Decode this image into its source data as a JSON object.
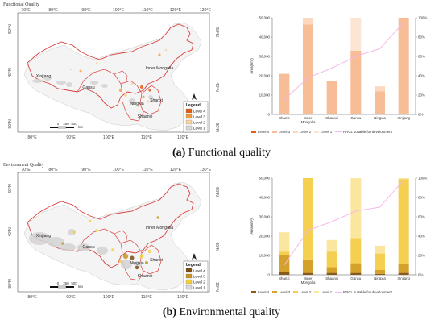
{
  "panels": [
    {
      "id": "a",
      "header": "Functional Quality",
      "caption_letter": "(a)",
      "caption_text": " Functional quality",
      "map": {
        "lon_labels": [
          "70°E",
          "80°E",
          "90°E",
          "100°E",
          "110°E",
          "120°E",
          "130°E"
        ],
        "lat_labels_right": [
          "50°N",
          "40°N",
          "30°N"
        ],
        "lat_labels_left": [
          "50°N",
          "40°N",
          "30°N"
        ],
        "bottom_lon_labels": [
          "80°E",
          "90°E",
          "100°E",
          "110°E",
          "120°E"
        ],
        "regions": [
          "Xinjiang",
          "Gansu",
          "Inner Mongolia",
          "Ningxia",
          "Shanxi",
          "Shaanxi"
        ],
        "legend": {
          "title": "Legend",
          "items": [
            {
              "label": "Level 4",
              "color": "#e25a10"
            },
            {
              "label": "Level 3",
              "color": "#f39a3c"
            },
            {
              "label": "Level 2",
              "color": "#f8d6a0"
            },
            {
              "label": "Level 1",
              "color": "#d9d9d9"
            }
          ]
        },
        "scale_labels": [
          "0",
          "250",
          "500"
        ],
        "scale_unit": "km"
      },
      "chart_data": {
        "type": "bar",
        "stacked": true,
        "categories": [
          "Shanxi",
          "Inner Mongolia",
          "Shaanxi",
          "Gansu",
          "Ningxia",
          "Xinjiang"
        ],
        "category_labels": [
          [
            "Shanxi"
          ],
          [
            "Inner",
            "Mongolia"
          ],
          [
            "Shaanxi"
          ],
          [
            "Gansu"
          ],
          [
            "Ningxia"
          ],
          [
            "Xinjiang"
          ]
        ],
        "ylabel": "Area(km²)",
        "ylim": [
          0,
          50000
        ],
        "yticks": [
          "0",
          "10,000",
          "20,000",
          "30,000",
          "40,000",
          "50,000"
        ],
        "y2ticks": [
          "0%",
          "20%",
          "40%",
          "60%",
          "80%",
          "100%"
        ],
        "y2lim": [
          0,
          100
        ],
        "series": [
          {
            "name": "Level 4",
            "color": "#e0601a",
            "values": [
              0,
              0,
              0,
              0,
              0,
              0
            ]
          },
          {
            "name": "Level 3",
            "color": "#f7bd96",
            "values": [
              21000,
              46500,
              17500,
              33000,
              12000,
              50000
            ]
          },
          {
            "name": "Level 2",
            "color": "#fbd8bf",
            "values": [
              0,
              3500,
              0,
              0,
              2500,
              0
            ]
          },
          {
            "name": "Level 1",
            "color": "#fde5d3",
            "values": [
              0,
              0,
              0,
              17000,
              0,
              0
            ]
          }
        ],
        "line": {
          "name": "RRCL suitable for development",
          "color": "#f3b8e8",
          "values": [
            15,
            38,
            48,
            60,
            68,
            95
          ]
        }
      }
    },
    {
      "id": "b",
      "header": "Environment Quality",
      "caption_letter": "(b)",
      "caption_text": " Environmental quality",
      "map": {
        "lon_labels": [
          "70°E",
          "80°E",
          "90°E",
          "100°E",
          "110°E",
          "120°E",
          "130°E"
        ],
        "lat_labels_right": [
          "50°N",
          "40°N",
          "30°N"
        ],
        "lat_labels_left": [
          "50°N",
          "40°N",
          "30°N"
        ],
        "bottom_lon_labels": [
          "80°E",
          "90°E",
          "100°E",
          "110°E",
          "120°E"
        ],
        "regions": [
          "Xinjiang",
          "Gansu",
          "Inner Mongolia",
          "Ningxia",
          "Shanxi",
          "Shaanxi"
        ],
        "legend": {
          "title": "Legend",
          "items": [
            {
              "label": "Level 4",
              "color": "#7a4b12"
            },
            {
              "label": "Level 3",
              "color": "#c79422"
            },
            {
              "label": "Level 2",
              "color": "#f5cf3a"
            },
            {
              "label": "Level 1",
              "color": "#d9d9d9"
            }
          ]
        },
        "scale_labels": [
          "0",
          "250",
          "500"
        ],
        "scale_unit": "km"
      },
      "chart_data": {
        "type": "bar",
        "stacked": true,
        "categories": [
          "Shanxi",
          "Inner Mongolia",
          "Shaanxi",
          "Gansu",
          "Ningxia",
          "Xinjiang"
        ],
        "category_labels": [
          [
            "Shanxi"
          ],
          [
            "Inner",
            "Mongolia"
          ],
          [
            "Shaanxi"
          ],
          [
            "Gansu"
          ],
          [
            "Ningxia"
          ],
          [
            "Xinjiang"
          ]
        ],
        "ylabel": "Area(km²)",
        "ylim": [
          0,
          50000
        ],
        "yticks": [
          "0",
          "10,000",
          "20,000",
          "30,000",
          "40,000",
          "50,000"
        ],
        "y2ticks": [
          "0%",
          "20%",
          "40%",
          "60%",
          "80%",
          "100%"
        ],
        "y2lim": [
          0,
          100
        ],
        "series": [
          {
            "name": "Level 4",
            "color": "#8a5a1a",
            "values": [
              1500,
              1000,
              1000,
              1000,
              500,
              1000
            ]
          },
          {
            "name": "Level 3",
            "color": "#d4a12b",
            "values": [
              8500,
              7000,
              3000,
              5000,
              2000,
              4500
            ]
          },
          {
            "name": "Level 2",
            "color": "#f5cf50",
            "values": [
              2000,
              42000,
              8000,
              13000,
              8500,
              44000
            ]
          },
          {
            "name": "Level 1",
            "color": "#fbe6a0",
            "values": [
              10000,
              0,
              6000,
              31000,
              4000,
              500
            ]
          }
        ],
        "line": {
          "name": "RRCL suitable for development",
          "color": "#f3b8e8",
          "values": [
            10,
            46,
            55,
            66,
            70,
            98
          ]
        }
      }
    }
  ]
}
